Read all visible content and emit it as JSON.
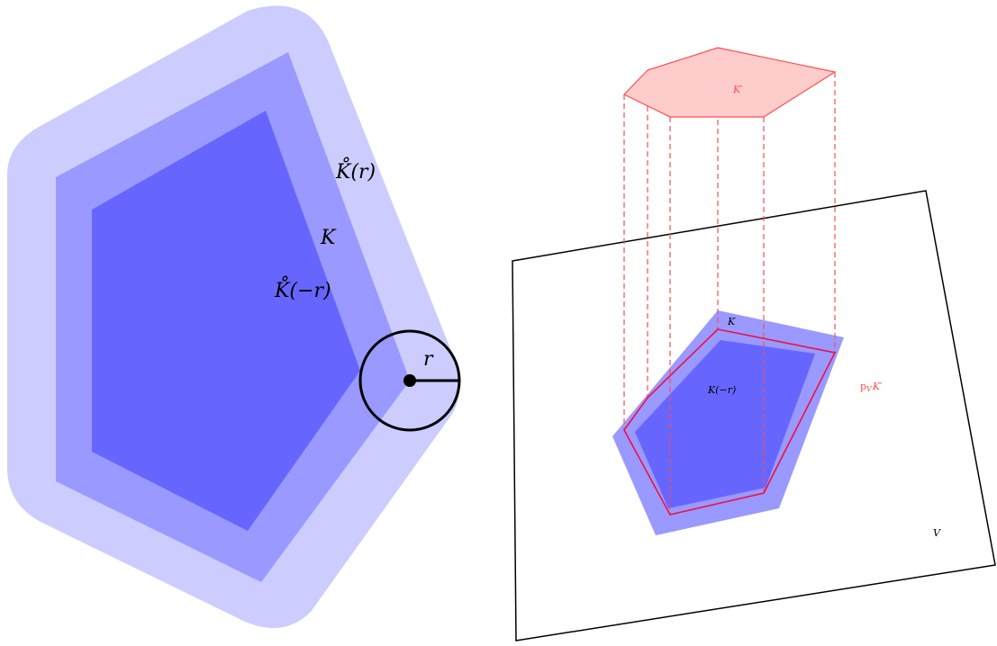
{
  "colors": {
    "outer_fill": "#ccccff",
    "mid_fill": "#9999ff",
    "inner_fill": "#6666ff",
    "projection_red": "#ff4d4d",
    "projection_fill": "#ffcccc",
    "outline": "#000000"
  },
  "left_figure": {
    "label_outer": "K̊(r)",
    "label_mid": "K",
    "label_inner": "K̊(−r)",
    "radius_label": "r"
  },
  "right_figure": {
    "label_top": "K′",
    "label_mid": "K",
    "label_inner": "K(−r)",
    "label_projection_prefix": "p",
    "label_projection_sub": "V",
    "label_projection_suffix": "K′",
    "label_plane": "V"
  }
}
